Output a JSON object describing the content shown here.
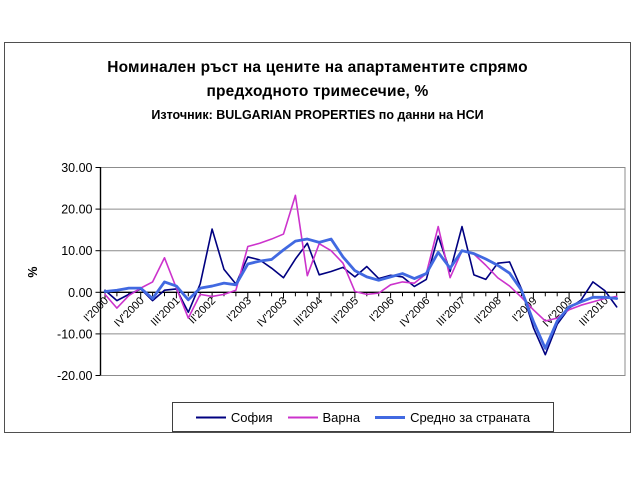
{
  "title": {
    "line1": "Номинален ръст на цените на апартаментите спрямо",
    "line2": "предходното тримесечие, %",
    "source": "Източник: BULGARIAN PROPERTIES по данни на НСИ"
  },
  "chart_data": {
    "type": "line",
    "title": "Номинален ръст на цените на апартаментите спрямо предходното тримесечие, %",
    "subtitle": "Източник: BULGARIAN PROPERTIES по данни на НСИ",
    "ylabel": "%",
    "ylim": [
      -20,
      30
    ],
    "yticks": [
      "30.00",
      "20.00",
      "10.00",
      "0.00",
      "-10.00",
      "-20.00"
    ],
    "grid": "horizontal",
    "legend_position": "bottom",
    "label_every": 3,
    "visible_x_labels": [
      "I'2000",
      "IV'2000",
      "III'2001",
      "II'2002",
      "I'2003",
      "IV'2003",
      "III'2004",
      "II'2005",
      "I'2006",
      "IV'2006",
      "III'2007",
      "II'2008",
      "I'2009",
      "IV'2009",
      "III'2010"
    ],
    "categories": [
      "I'2000",
      "II'2000",
      "III'2000",
      "IV'2000",
      "I'2001",
      "II'2001",
      "III'2001",
      "IV'2001",
      "I'2002",
      "II'2002",
      "III'2002",
      "IV'2002",
      "I'2003",
      "II'2003",
      "III'2003",
      "IV'2003",
      "I'2004",
      "II'2004",
      "III'2004",
      "IV'2004",
      "I'2005",
      "II'2005",
      "III'2005",
      "IV'2005",
      "I'2006",
      "II'2006",
      "III'2006",
      "IV'2006",
      "I'2007",
      "II'2007",
      "III'2007",
      "IV'2007",
      "I'2008",
      "II'2008",
      "III'2008",
      "IV'2008",
      "I'2009",
      "II'2009",
      "III'2009",
      "IV'2009",
      "I'2010",
      "II'2010",
      "III'2010",
      "IV'2010"
    ],
    "series": [
      {
        "name": "София",
        "color": "#000080",
        "width": 1.6,
        "values": [
          0.5,
          -2.0,
          -0.5,
          0.8,
          -2.0,
          0.5,
          0.8,
          -4.8,
          2.0,
          15.2,
          5.5,
          2.0,
          8.5,
          7.8,
          5.8,
          3.5,
          8.0,
          11.8,
          4.2,
          5.0,
          6.0,
          3.7,
          6.2,
          3.3,
          4.1,
          3.7,
          1.4,
          3.1,
          13.5,
          5.0,
          15.8,
          4.2,
          3.1,
          7.0,
          7.3,
          0.8,
          -8.5,
          -15.0,
          -7.7,
          -3.8,
          -1.9,
          2.5,
          0.4,
          -3.5
        ]
      },
      {
        "name": "Варна",
        "color": "#cc33cc",
        "width": 1.6,
        "values": [
          -0.5,
          -3.8,
          -0.8,
          1.0,
          2.5,
          8.3,
          1.0,
          -6.2,
          -0.5,
          -1.0,
          -0.5,
          0.5,
          11.0,
          11.8,
          12.8,
          14.0,
          23.3,
          4.0,
          11.7,
          10.0,
          7.0,
          0.2,
          -0.5,
          -0.2,
          1.8,
          2.5,
          2.2,
          4.5,
          15.8,
          3.5,
          10.0,
          9.2,
          6.5,
          3.5,
          1.5,
          -1.2,
          -4.2,
          -6.9,
          -6.2,
          -4.2,
          -3.1,
          -2.3,
          -1.5,
          -1.0
        ]
      },
      {
        "name": "Средно за страната",
        "color": "#4169e1",
        "width": 2.8,
        "values": [
          0.2,
          0.5,
          1.0,
          1.0,
          -1.5,
          2.5,
          1.5,
          -1.8,
          1.0,
          1.5,
          2.2,
          1.8,
          6.8,
          7.5,
          7.9,
          10.2,
          12.3,
          12.8,
          12.0,
          12.8,
          8.5,
          5.2,
          3.7,
          2.9,
          3.7,
          4.5,
          3.3,
          4.5,
          9.6,
          5.8,
          10.0,
          9.3,
          8.0,
          6.5,
          4.6,
          0.5,
          -7.0,
          -13.5,
          -6.9,
          -3.5,
          -2.3,
          -1.2,
          -1.2,
          -1.5
        ]
      }
    ]
  }
}
